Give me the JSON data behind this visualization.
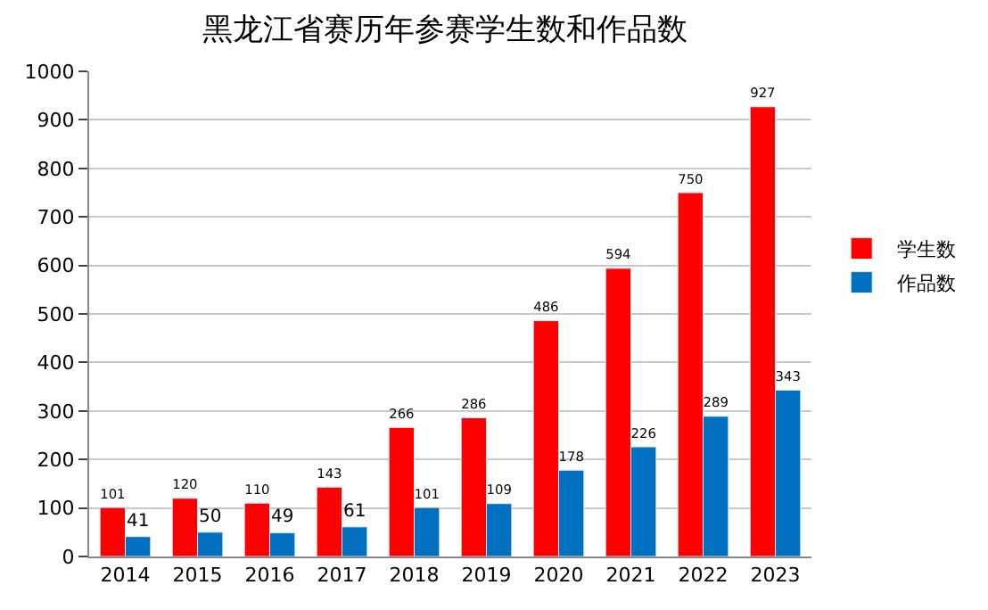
{
  "chart_data": {
    "type": "bar",
    "title": "黑龙江省赛历年参赛学生数和作品数",
    "categories": [
      "2014",
      "2015",
      "2016",
      "2017",
      "2018",
      "2019",
      "2020",
      "2021",
      "2022",
      "2023"
    ],
    "series": [
      {
        "name": "学生数",
        "color": "#ff0000",
        "values": [
          101,
          120,
          110,
          143,
          266,
          286,
          486,
          594,
          750,
          927
        ]
      },
      {
        "name": "作品数",
        "color": "#0070c0",
        "values": [
          41,
          50,
          49,
          61,
          101,
          109,
          178,
          226,
          289,
          343
        ]
      }
    ],
    "ylim": [
      0,
      1000
    ],
    "yticks": [
      0,
      100,
      200,
      300,
      400,
      500,
      600,
      700,
      800,
      900,
      1000
    ],
    "grid": "y",
    "legend": "right",
    "data_labels": true
  }
}
